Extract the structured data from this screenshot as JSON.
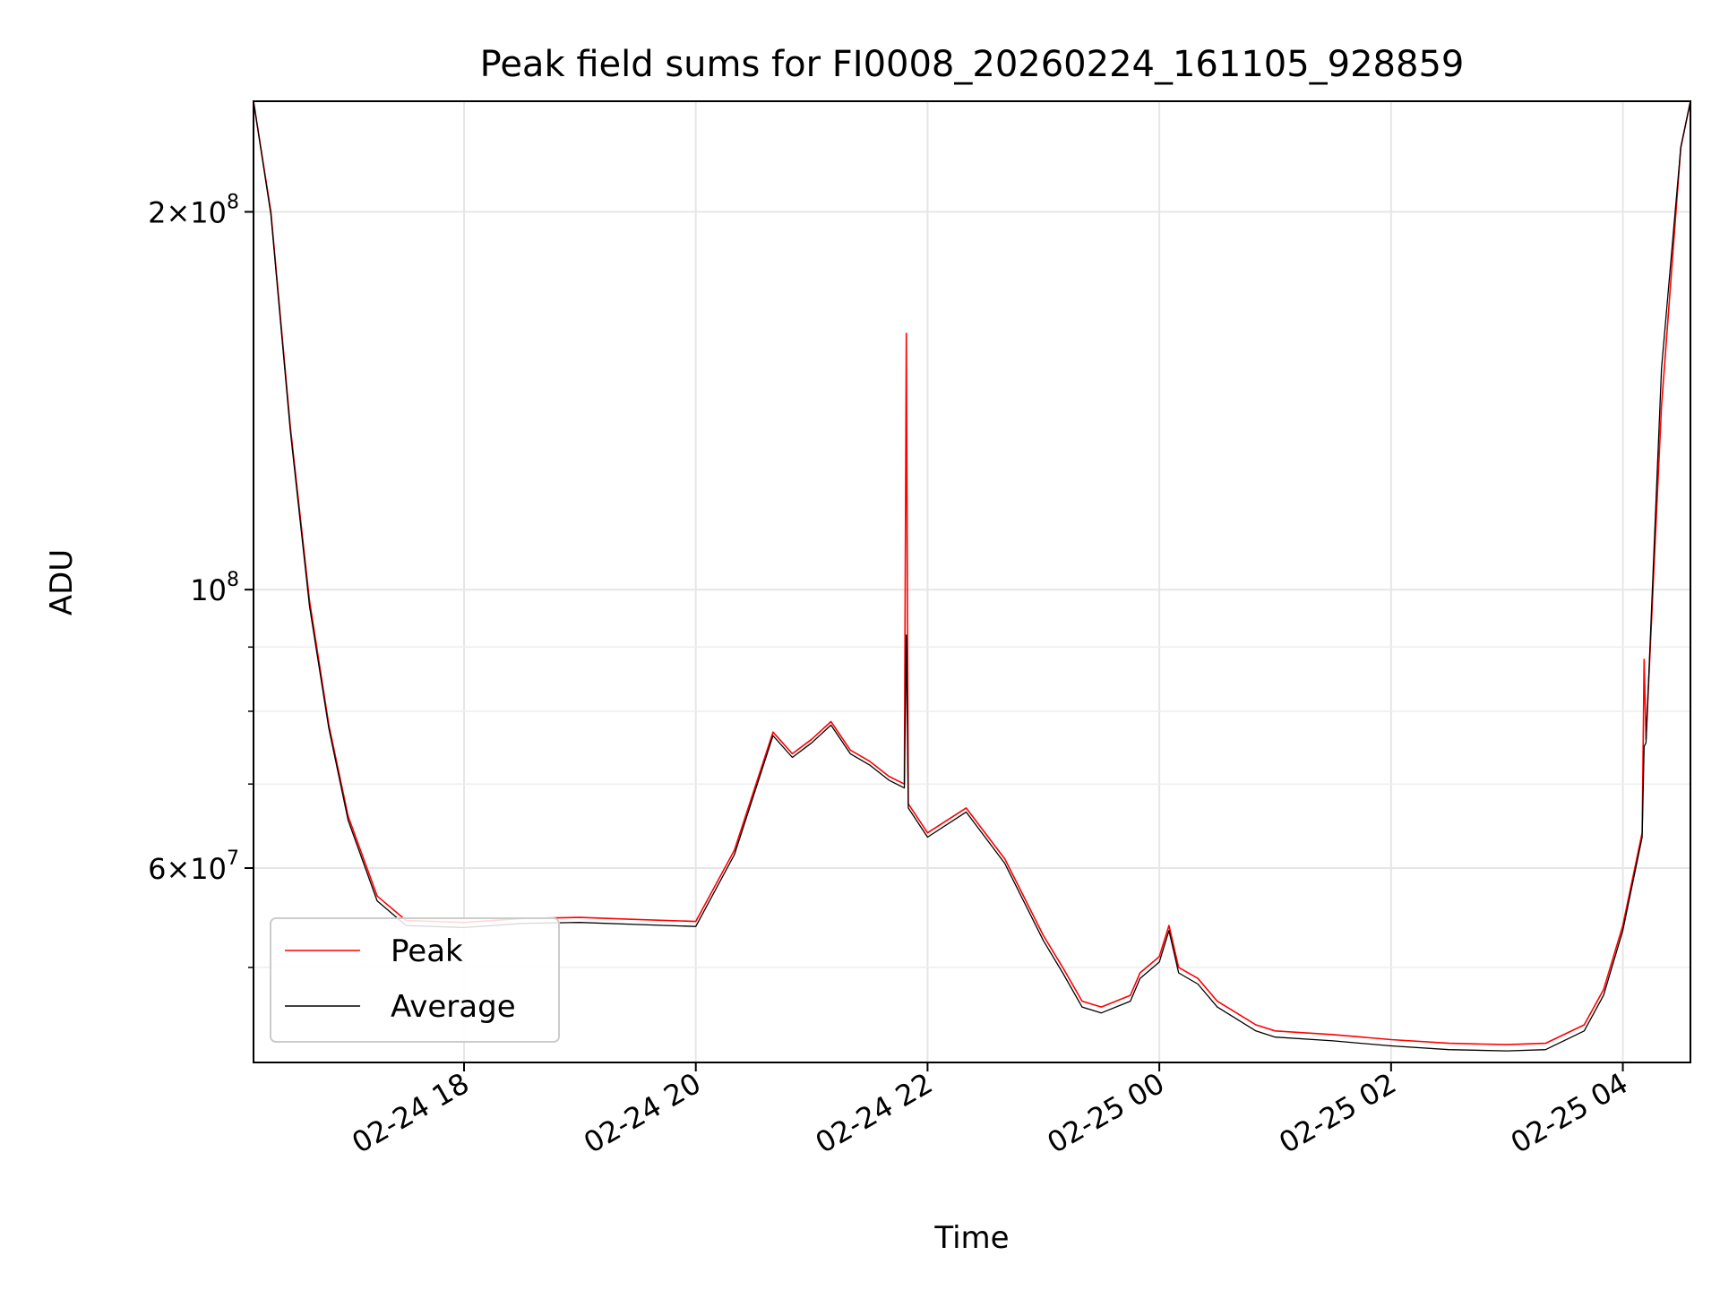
{
  "chart_data": {
    "type": "line",
    "title": "Peak field sums for FI0008_20260224_161105_928859",
    "xlabel": "Time",
    "ylabel": "ADU",
    "yscale": "log",
    "xlim": [
      "2026-02-24 16:11",
      "2026-02-25 04:35"
    ],
    "ylim": [
      42000000,
      245000000
    ],
    "x_ticks": [
      "02-24 18",
      "02-24 20",
      "02-24 22",
      "02-25 00",
      "02-25 02",
      "02-25 04"
    ],
    "y_major_ticks": [
      {
        "value": 200000000,
        "mantissa": "2",
        "exponent": "8"
      },
      {
        "value": 100000000,
        "mantissa": "",
        "exponent": "8"
      },
      {
        "value": 60000000,
        "mantissa": "6",
        "exponent": "7"
      }
    ],
    "y_minor_ticks": [
      50000000,
      70000000,
      80000000,
      90000000
    ],
    "grid": true,
    "legend_position": "lower-left",
    "series": [
      {
        "name": "Peak",
        "color": "#ff0000",
        "x": [
          "2026-02-24 16:11",
          "2026-02-24 16:20",
          "2026-02-24 16:30",
          "2026-02-24 16:40",
          "2026-02-24 16:50",
          "2026-02-24 17:00",
          "2026-02-24 17:15",
          "2026-02-24 17:30",
          "2026-02-24 18:00",
          "2026-02-24 18:30",
          "2026-02-24 19:00",
          "2026-02-24 19:30",
          "2026-02-24 20:00",
          "2026-02-24 20:20",
          "2026-02-24 20:40",
          "2026-02-24 20:50",
          "2026-02-24 21:00",
          "2026-02-24 21:10",
          "2026-02-24 21:20",
          "2026-02-24 21:30",
          "2026-02-24 21:40",
          "2026-02-24 21:48",
          "2026-02-24 21:49",
          "2026-02-24 21:50",
          "2026-02-24 22:00",
          "2026-02-24 22:20",
          "2026-02-24 22:40",
          "2026-02-24 23:00",
          "2026-02-24 23:10",
          "2026-02-24 23:20",
          "2026-02-24 23:30",
          "2026-02-24 23:45",
          "2026-02-24 23:50",
          "2026-02-25 00:00",
          "2026-02-25 00:05",
          "2026-02-25 00:10",
          "2026-02-25 00:20",
          "2026-02-25 00:30",
          "2026-02-25 00:50",
          "2026-02-25 01:00",
          "2026-02-25 01:30",
          "2026-02-25 02:00",
          "2026-02-25 02:30",
          "2026-02-25 03:00",
          "2026-02-25 03:20",
          "2026-02-25 03:40",
          "2026-02-25 03:50",
          "2026-02-25 04:00",
          "2026-02-25 04:10",
          "2026-02-25 04:11",
          "2026-02-25 04:12",
          "2026-02-25 04:20",
          "2026-02-25 04:30",
          "2026-02-25 04:35"
        ],
        "values": [
          245000000,
          200000000,
          135000000,
          98000000,
          78000000,
          66000000,
          57000000,
          54500000,
          54300000,
          54700000,
          54800000,
          54600000,
          54400000,
          62000000,
          77000000,
          74000000,
          76000000,
          78500000,
          74500000,
          73000000,
          71000000,
          70000000,
          160000000,
          67500000,
          64000000,
          67000000,
          61000000,
          53000000,
          50000000,
          47000000,
          46500000,
          47500000,
          49500000,
          51000000,
          54000000,
          50000000,
          49000000,
          47000000,
          45000000,
          44500000,
          44200000,
          43800000,
          43500000,
          43400000,
          43500000,
          45000000,
          48000000,
          54000000,
          64000000,
          88000000,
          76000000,
          140000000,
          225000000,
          245000000
        ]
      },
      {
        "name": "Average",
        "color": "#000000",
        "x": [
          "2026-02-24 16:11",
          "2026-02-24 16:20",
          "2026-02-24 16:30",
          "2026-02-24 16:40",
          "2026-02-24 16:50",
          "2026-02-24 17:00",
          "2026-02-24 17:15",
          "2026-02-24 17:30",
          "2026-02-24 18:00",
          "2026-02-24 18:30",
          "2026-02-24 19:00",
          "2026-02-24 19:30",
          "2026-02-24 20:00",
          "2026-02-24 20:20",
          "2026-02-24 20:40",
          "2026-02-24 20:50",
          "2026-02-24 21:00",
          "2026-02-24 21:10",
          "2026-02-24 21:20",
          "2026-02-24 21:30",
          "2026-02-24 21:40",
          "2026-02-24 21:48",
          "2026-02-24 21:49",
          "2026-02-24 21:50",
          "2026-02-24 22:00",
          "2026-02-24 22:20",
          "2026-02-24 22:40",
          "2026-02-24 23:00",
          "2026-02-24 23:10",
          "2026-02-24 23:20",
          "2026-02-24 23:30",
          "2026-02-24 23:45",
          "2026-02-24 23:50",
          "2026-02-25 00:00",
          "2026-02-25 00:05",
          "2026-02-25 00:10",
          "2026-02-25 00:20",
          "2026-02-25 00:30",
          "2026-02-25 00:50",
          "2026-02-25 01:00",
          "2026-02-25 01:30",
          "2026-02-25 02:00",
          "2026-02-25 02:30",
          "2026-02-25 03:00",
          "2026-02-25 03:20",
          "2026-02-25 03:40",
          "2026-02-25 03:50",
          "2026-02-25 04:00",
          "2026-02-25 04:10",
          "2026-02-25 04:11",
          "2026-02-25 04:12",
          "2026-02-25 04:20",
          "2026-02-25 04:30",
          "2026-02-25 04:35"
        ],
        "values": [
          245000000,
          199000000,
          134000000,
          97000000,
          77500000,
          65500000,
          56500000,
          54000000,
          53800000,
          54200000,
          54300000,
          54100000,
          53900000,
          61500000,
          76500000,
          73500000,
          75500000,
          78000000,
          74000000,
          72500000,
          70500000,
          69500000,
          92000000,
          67000000,
          63500000,
          66500000,
          60500000,
          52500000,
          49500000,
          46500000,
          46000000,
          47000000,
          49000000,
          50500000,
          53500000,
          49500000,
          48500000,
          46500000,
          44500000,
          44000000,
          43700000,
          43300000,
          43000000,
          42900000,
          43000000,
          44500000,
          47500000,
          53500000,
          63500000,
          75000000,
          75500000,
          150000000,
          225000000,
          245000000
        ]
      }
    ]
  }
}
